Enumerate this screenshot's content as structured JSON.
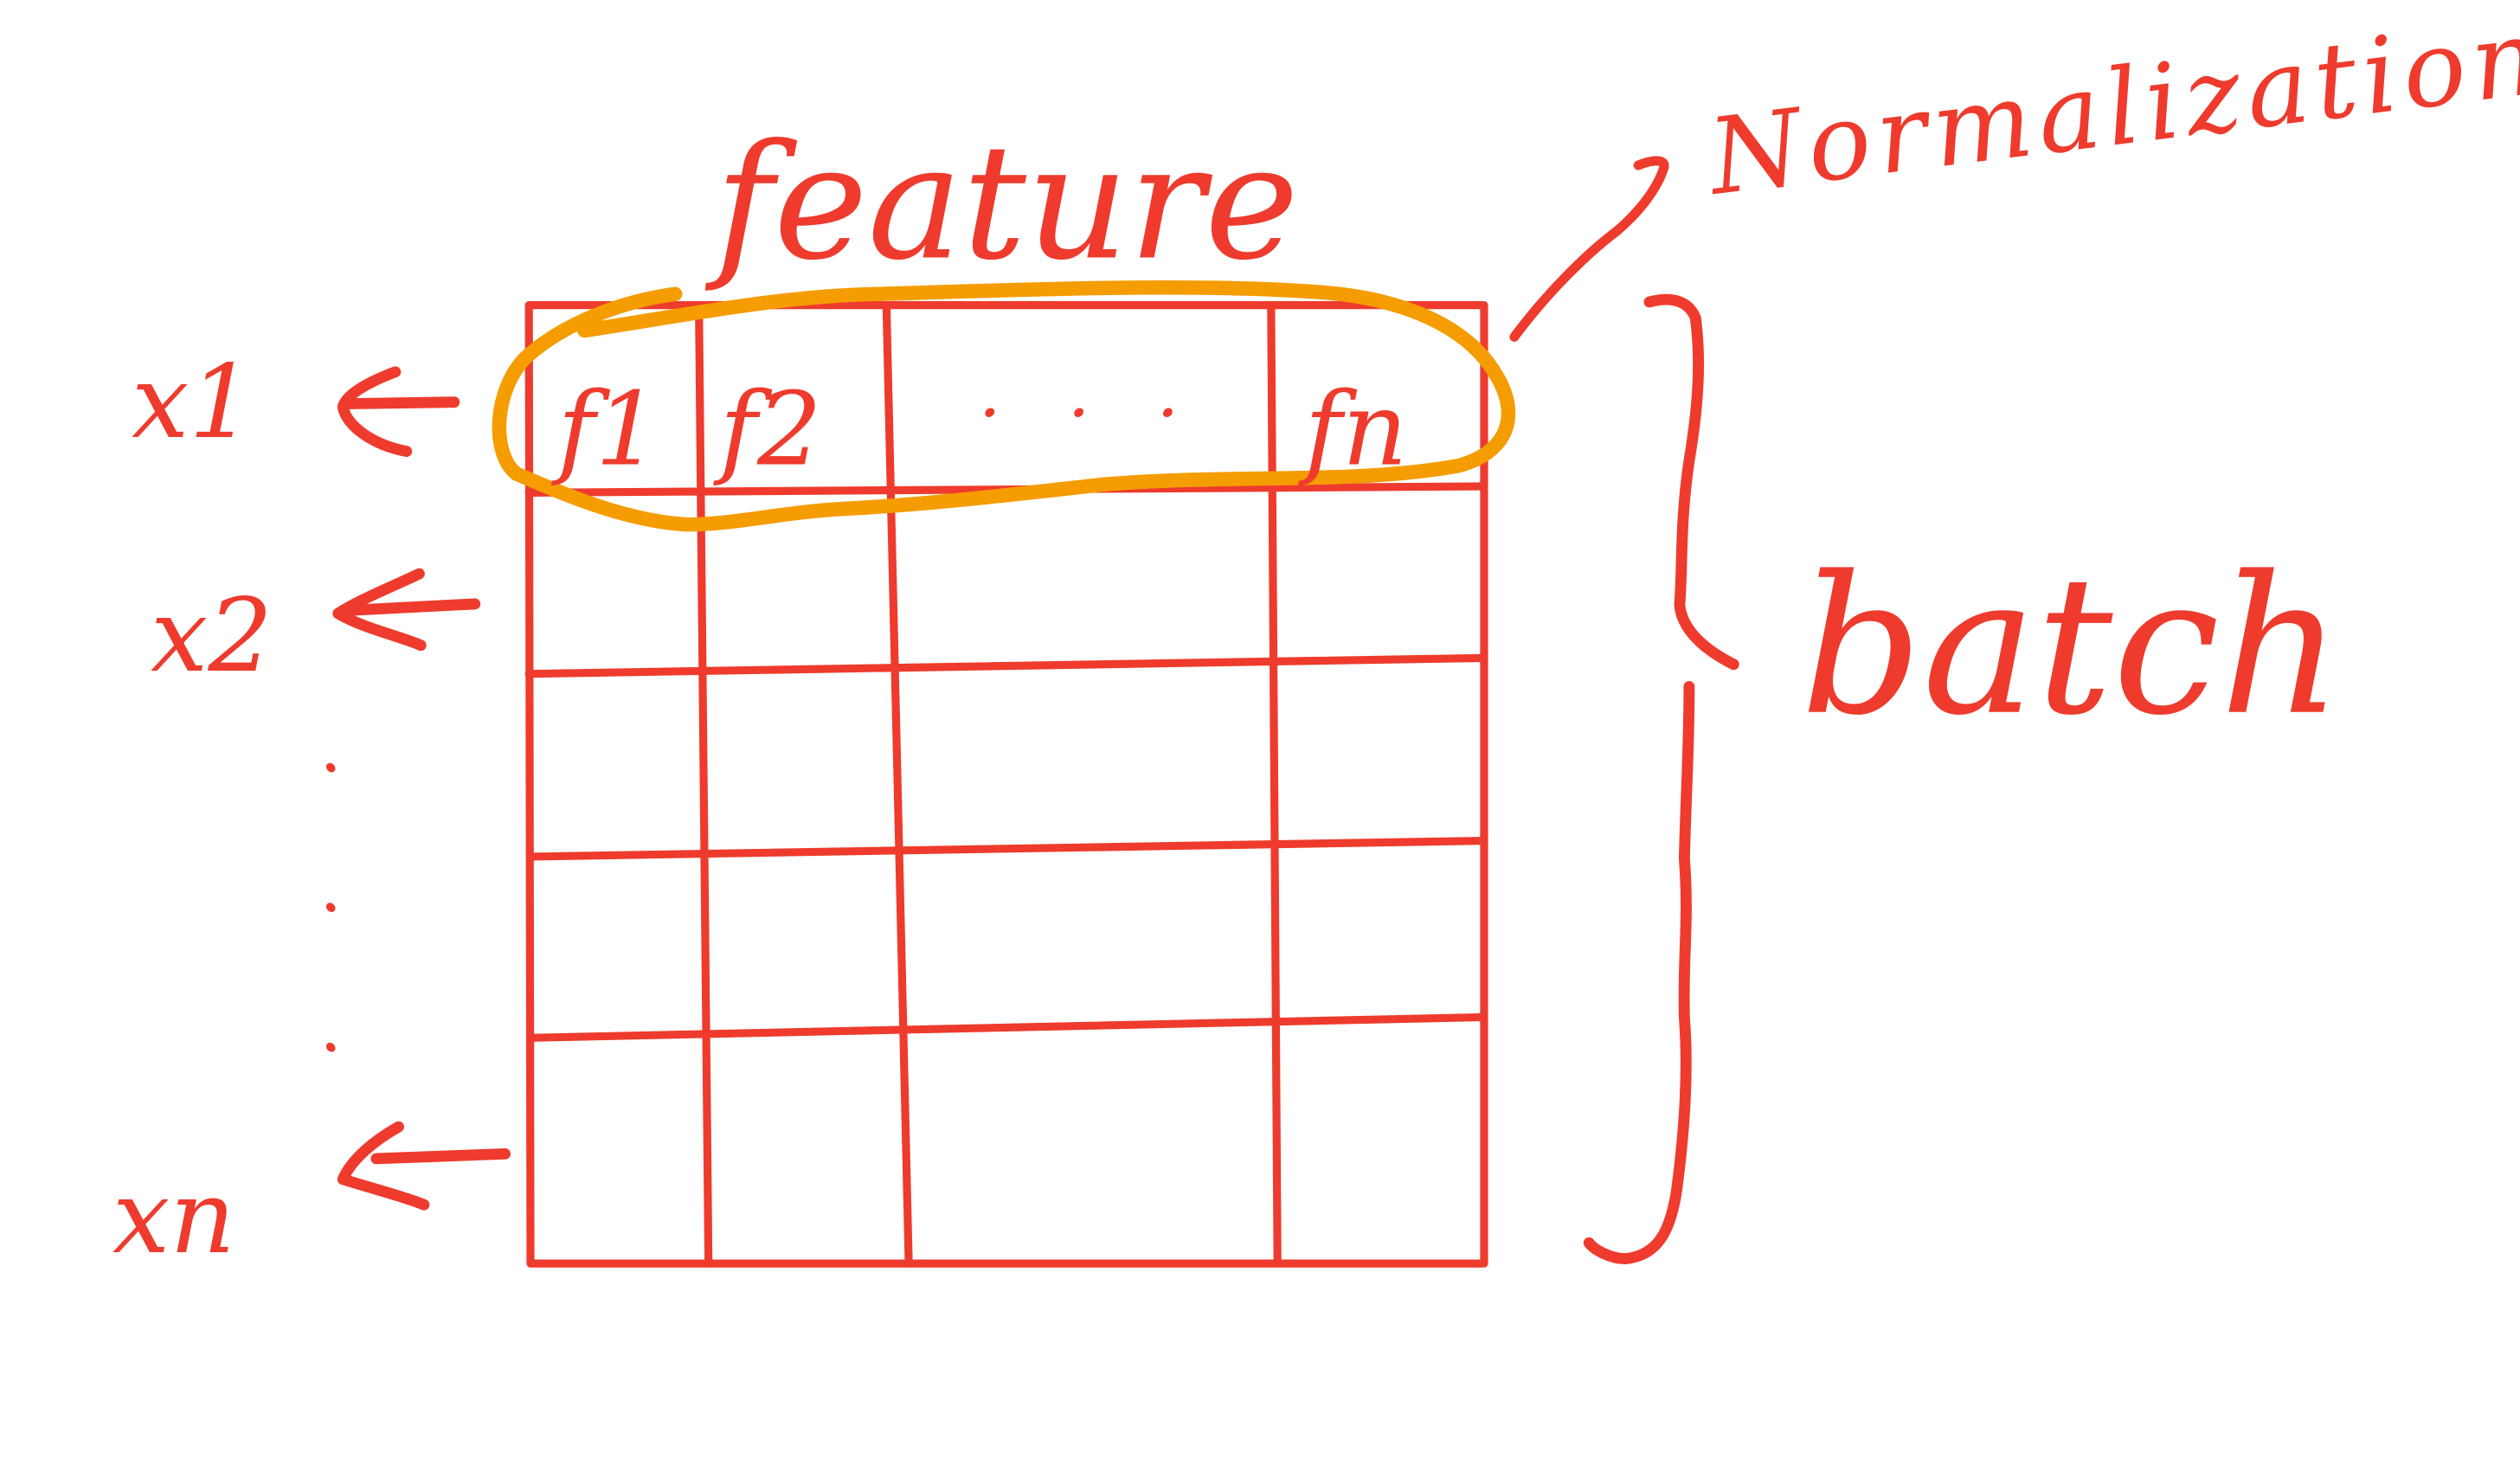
{
  "diagram": {
    "title": "feature",
    "side_label": "batch",
    "annotation": "Normalization",
    "row_labels": [
      "x1",
      "x2",
      "xn"
    ],
    "feature_labels": [
      "f1",
      "f2",
      "fn"
    ],
    "ellipsis_horizontal": ". . .",
    "ellipsis_vertical": ". . .",
    "colors": {
      "ink": "#ee3b2d",
      "highlight": "#f59c00",
      "background": "#ffffff"
    }
  }
}
